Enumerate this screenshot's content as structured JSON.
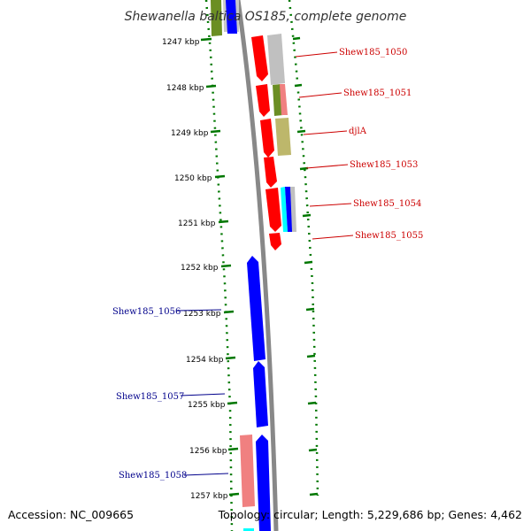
{
  "title": "Shewanella baltica OS185, complete genome",
  "accession": "Accession: NC_009665",
  "summary": "Topology: circular; Length: 5,229,686 bp; Genes: 4,462",
  "colors": {
    "forward_label": "#cc0000",
    "reverse_label": "#00008b",
    "red": "#ff0000",
    "blue": "#0000ff",
    "gray": "#c0c0c0",
    "olive": "#6b8e23",
    "khaki": "#bdb76b",
    "salmon": "#f08080",
    "cyan": "#00ffff",
    "tick": "#007700",
    "backbone": "#888888"
  },
  "ticks": [
    {
      "label": "1247 kbp"
    },
    {
      "label": "1248 kbp"
    },
    {
      "label": "1249 kbp"
    },
    {
      "label": "1250 kbp"
    },
    {
      "label": "1251 kbp"
    },
    {
      "label": "1252 kbp"
    },
    {
      "label": "1253 kbp"
    },
    {
      "label": "1254 kbp"
    },
    {
      "label": "1255 kbp"
    },
    {
      "label": "1256 kbp"
    },
    {
      "label": "1257 kbp"
    }
  ],
  "genes": [
    {
      "label": "Shew185_1050",
      "strand": "forward"
    },
    {
      "label": "Shew185_1051",
      "strand": "forward"
    },
    {
      "label": "djlA",
      "strand": "forward"
    },
    {
      "label": "Shew185_1053",
      "strand": "forward"
    },
    {
      "label": "Shew185_1054",
      "strand": "forward"
    },
    {
      "label": "Shew185_1055",
      "strand": "forward"
    },
    {
      "label": "Shew185_1056",
      "strand": "reverse"
    },
    {
      "label": "Shew185_1057",
      "strand": "reverse"
    },
    {
      "label": "Shew185_1058",
      "strand": "reverse"
    }
  ]
}
